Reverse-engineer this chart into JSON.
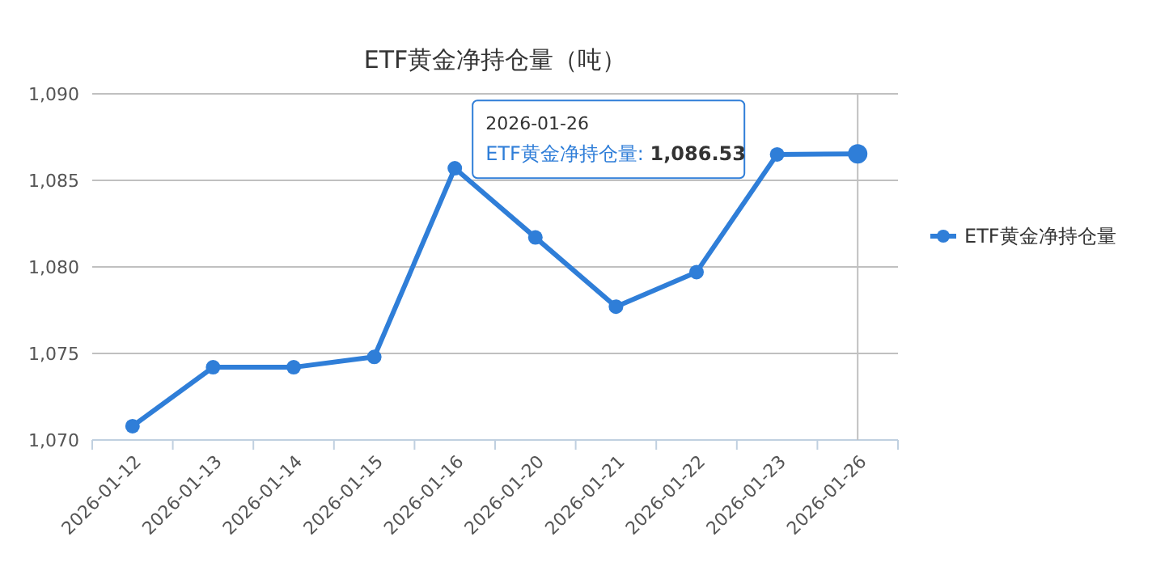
{
  "chart_data": {
    "type": "line",
    "title": "ETF黄金净持仓量（吨）",
    "categories": [
      "2026-01-12",
      "2026-01-13",
      "2026-01-14",
      "2026-01-15",
      "2026-01-16",
      "2026-01-20",
      "2026-01-21",
      "2026-01-22",
      "2026-01-23",
      "2026-01-26"
    ],
    "series": [
      {
        "name": "ETF黄金净持仓量",
        "color": "#2f7ed8",
        "values": [
          1070.8,
          1074.2,
          1074.2,
          1074.8,
          1085.7,
          1081.7,
          1077.7,
          1079.7,
          1086.5,
          1086.53
        ]
      }
    ],
    "ylim": [
      1070,
      1090
    ],
    "yticks": [
      {
        "value": 1070,
        "label": "1,070"
      },
      {
        "value": 1075,
        "label": "1,075"
      },
      {
        "value": 1080,
        "label": "1,080"
      },
      {
        "value": 1085,
        "label": "1,085"
      },
      {
        "value": 1090,
        "label": "1,090"
      }
    ],
    "ref_lines": [
      {
        "axis": "x",
        "value": "2026-01-26",
        "color": "#c0c0c0"
      }
    ],
    "annotations": [
      "2026-01-26\nETF黄金净持仓量: 1,086.53"
    ],
    "grid": "y",
    "legend": "right",
    "marker": "circle",
    "line_style": "solid"
  }
}
